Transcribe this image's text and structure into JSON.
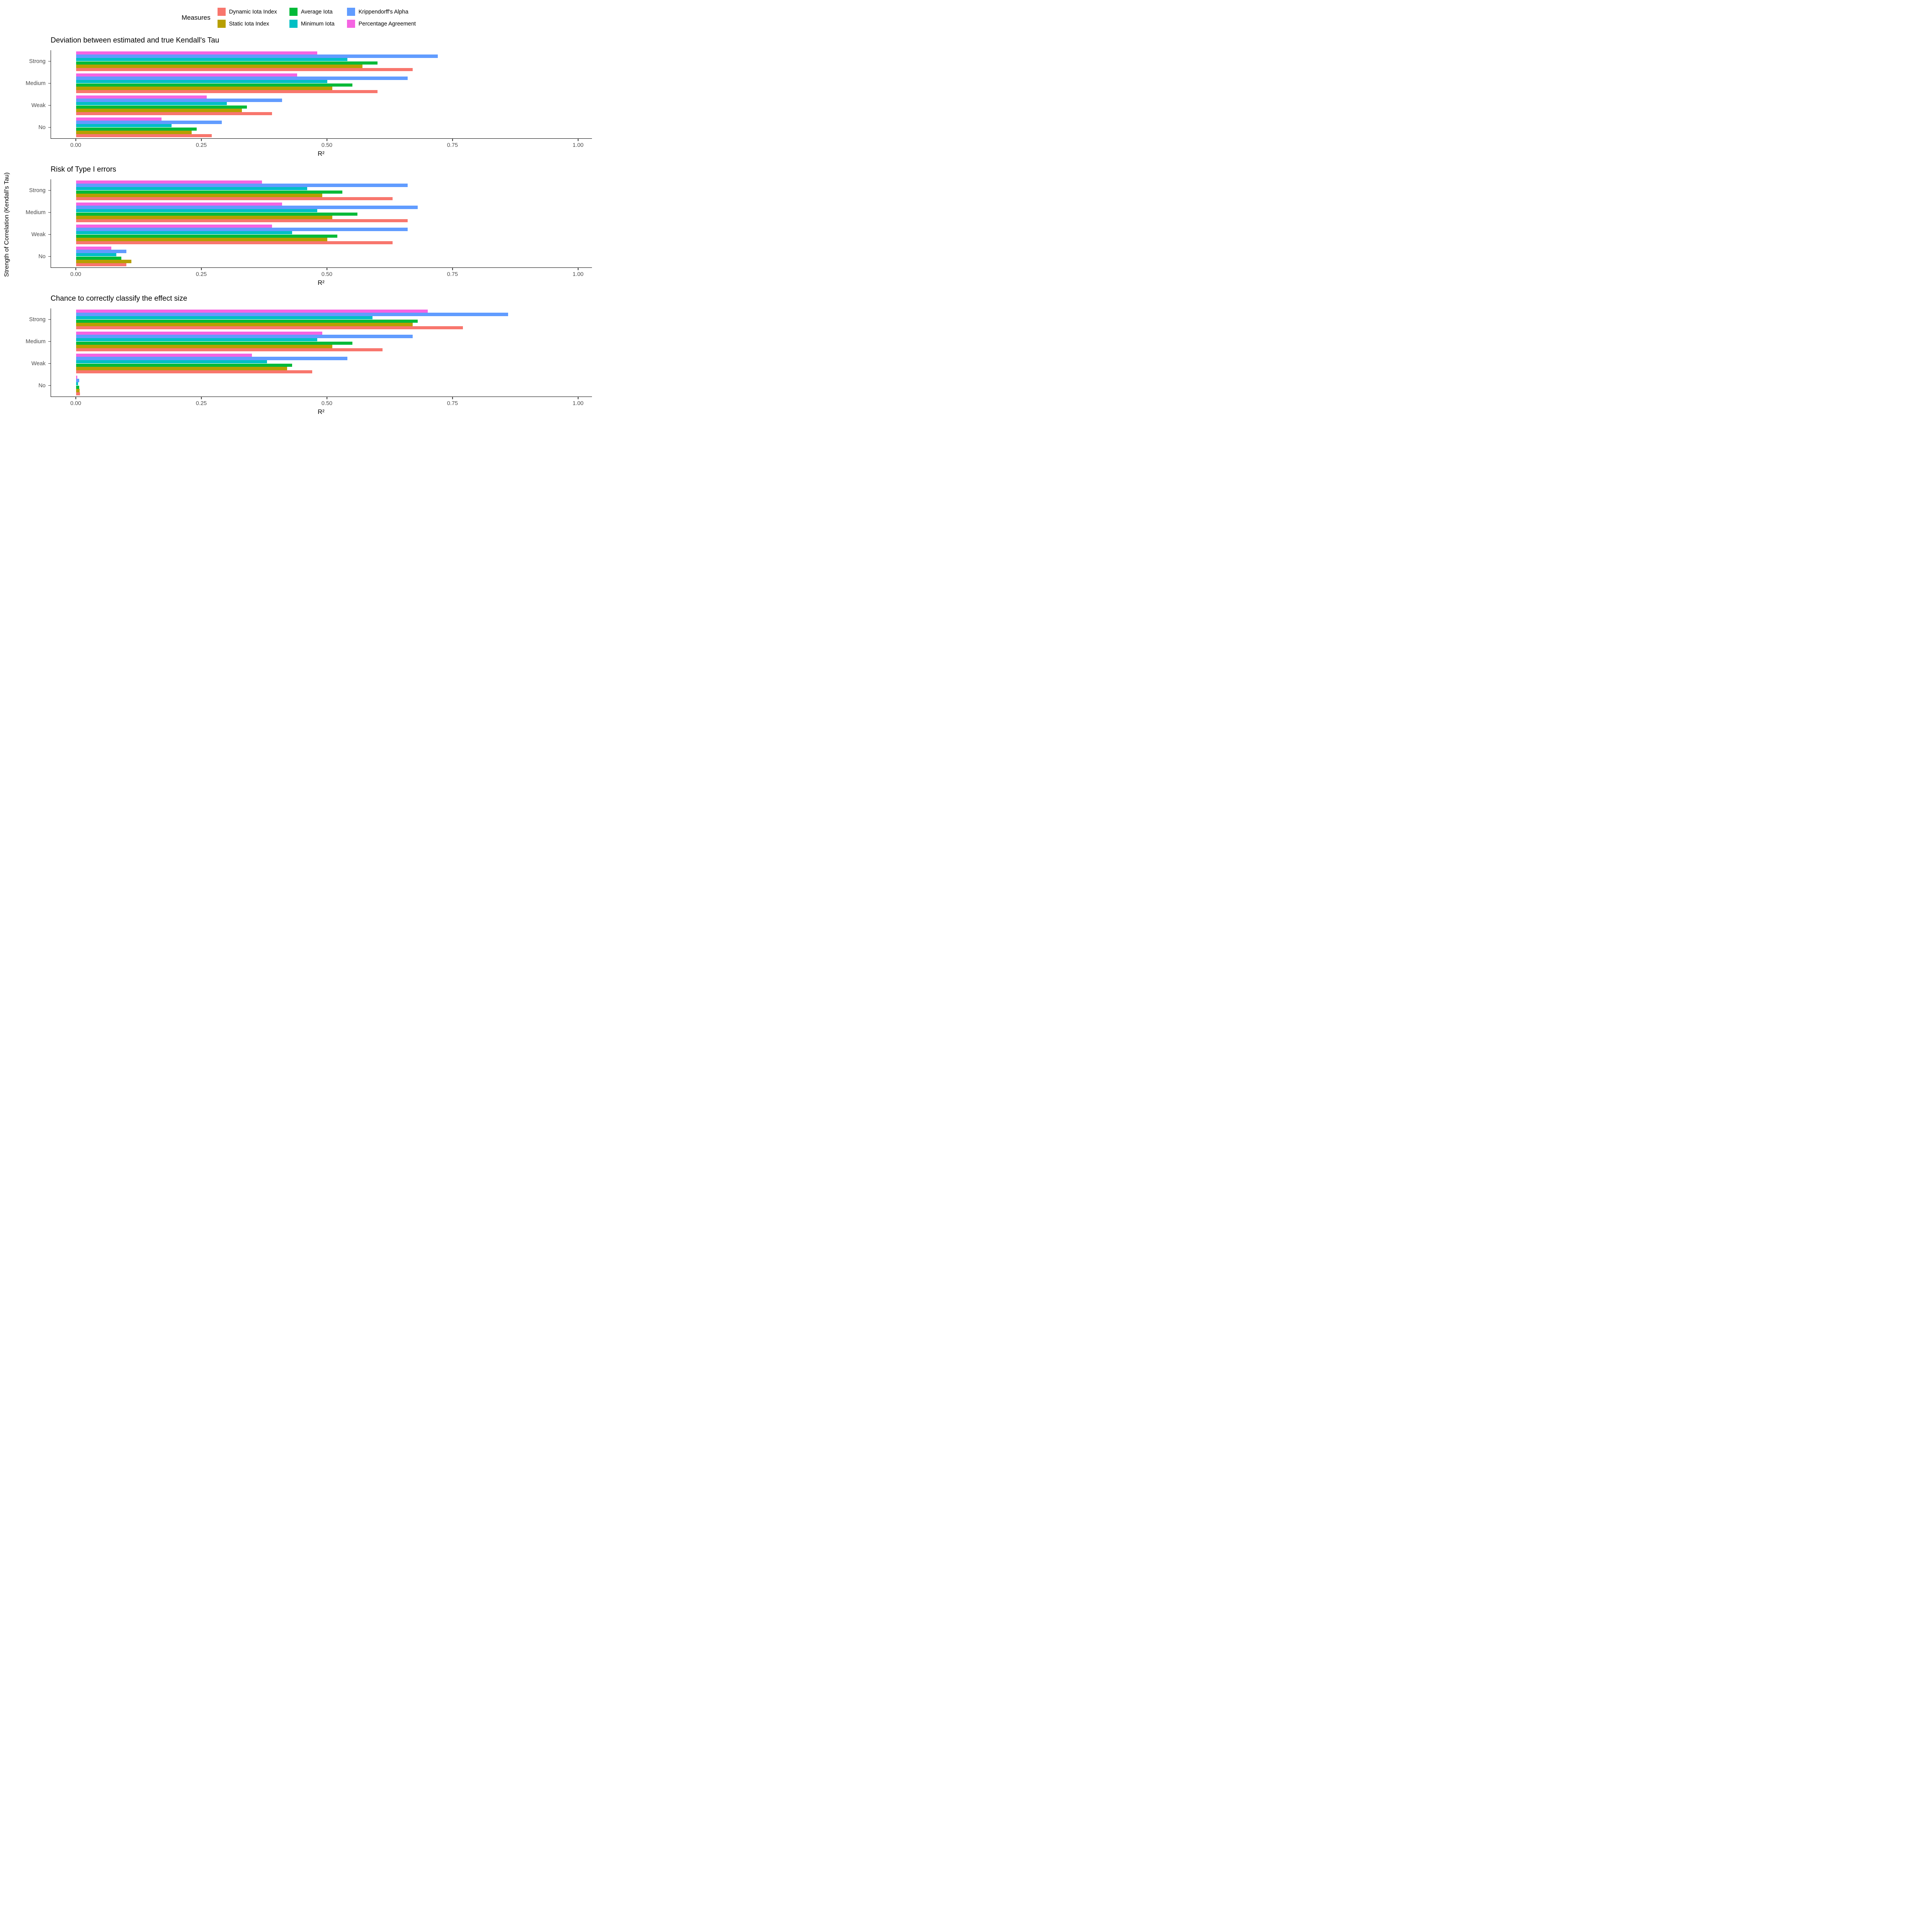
{
  "legend": {
    "title": "Measures",
    "items": [
      {
        "label": "Dynamic Iota Index",
        "color": "#F8766D"
      },
      {
        "label": "Static Iota Index",
        "color": "#B79F00"
      },
      {
        "label": "Average Iota",
        "color": "#00BA38"
      },
      {
        "label": "Minimum Iota",
        "color": "#00BFC4"
      },
      {
        "label": "Krippendorff's Alpha",
        "color": "#619CFF"
      },
      {
        "label": "Percentage Agreement",
        "color": "#F564E2"
      }
    ]
  },
  "y_axis_title": "Strength of Correlation (Kendall's Tau)",
  "chart_data": [
    {
      "type": "bar",
      "orientation": "horizontal",
      "title": "Deviation between estimated and true Kendall's Tau",
      "xlabel": "R²",
      "categories": [
        "Strong",
        "Medium",
        "Weak",
        "No"
      ],
      "x_ticks": [
        "0.00",
        "0.25",
        "0.50",
        "0.75",
        "1.00"
      ],
      "x_tick_values": [
        0,
        0.25,
        0.5,
        0.75,
        1
      ],
      "xlim": [
        0,
        1
      ],
      "legend_position": "top",
      "grid": false,
      "series": [
        {
          "name": "Dynamic Iota Index",
          "values": [
            0.67,
            0.6,
            0.39,
            0.27
          ]
        },
        {
          "name": "Static Iota Index",
          "values": [
            0.57,
            0.51,
            0.33,
            0.23
          ]
        },
        {
          "name": "Average Iota",
          "values": [
            0.6,
            0.55,
            0.34,
            0.24
          ]
        },
        {
          "name": "Minimum Iota",
          "values": [
            0.54,
            0.5,
            0.3,
            0.19
          ]
        },
        {
          "name": "Krippendorff's Alpha",
          "values": [
            0.72,
            0.66,
            0.41,
            0.29
          ]
        },
        {
          "name": "Percentage Agreement",
          "values": [
            0.48,
            0.44,
            0.26,
            0.17
          ]
        }
      ]
    },
    {
      "type": "bar",
      "orientation": "horizontal",
      "title": "Risk of Type I errors",
      "xlabel": "R²",
      "categories": [
        "Strong",
        "Medium",
        "Weak",
        "No"
      ],
      "x_ticks": [
        "0.00",
        "0.25",
        "0.50",
        "0.75",
        "1.00"
      ],
      "x_tick_values": [
        0,
        0.25,
        0.5,
        0.75,
        1
      ],
      "xlim": [
        0,
        1
      ],
      "legend_position": "top",
      "grid": false,
      "series": [
        {
          "name": "Dynamic Iota Index",
          "values": [
            0.63,
            0.66,
            0.63,
            0.1
          ]
        },
        {
          "name": "Static Iota Index",
          "values": [
            0.49,
            0.51,
            0.5,
            0.11
          ]
        },
        {
          "name": "Average Iota",
          "values": [
            0.53,
            0.56,
            0.52,
            0.09
          ]
        },
        {
          "name": "Minimum Iota",
          "values": [
            0.46,
            0.48,
            0.43,
            0.08
          ]
        },
        {
          "name": "Krippendorff's Alpha",
          "values": [
            0.66,
            0.68,
            0.66,
            0.1
          ]
        },
        {
          "name": "Percentage Agreement",
          "values": [
            0.37,
            0.41,
            0.39,
            0.07
          ]
        }
      ]
    },
    {
      "type": "bar",
      "orientation": "horizontal",
      "title": "Chance to correctly classify the effect size",
      "xlabel": "R²",
      "categories": [
        "Strong",
        "Medium",
        "Weak",
        "No"
      ],
      "x_ticks": [
        "0.00",
        "0.25",
        "0.50",
        "0.75",
        "1.00"
      ],
      "x_tick_values": [
        0,
        0.25,
        0.5,
        0.75,
        1
      ],
      "xlim": [
        0,
        1
      ],
      "legend_position": "top",
      "grid": false,
      "series": [
        {
          "name": "Dynamic Iota Index",
          "values": [
            0.77,
            0.61,
            0.47,
            0.008
          ]
        },
        {
          "name": "Static Iota Index",
          "values": [
            0.67,
            0.51,
            0.42,
            0.007
          ]
        },
        {
          "name": "Average Iota",
          "values": [
            0.68,
            0.55,
            0.43,
            0.006
          ]
        },
        {
          "name": "Minimum Iota",
          "values": [
            0.59,
            0.48,
            0.38,
            0.004
          ]
        },
        {
          "name": "Krippendorff's Alpha",
          "values": [
            0.86,
            0.67,
            0.54,
            0.006
          ]
        },
        {
          "name": "Percentage Agreement",
          "values": [
            0.7,
            0.49,
            0.35,
            0.002
          ]
        }
      ]
    }
  ]
}
